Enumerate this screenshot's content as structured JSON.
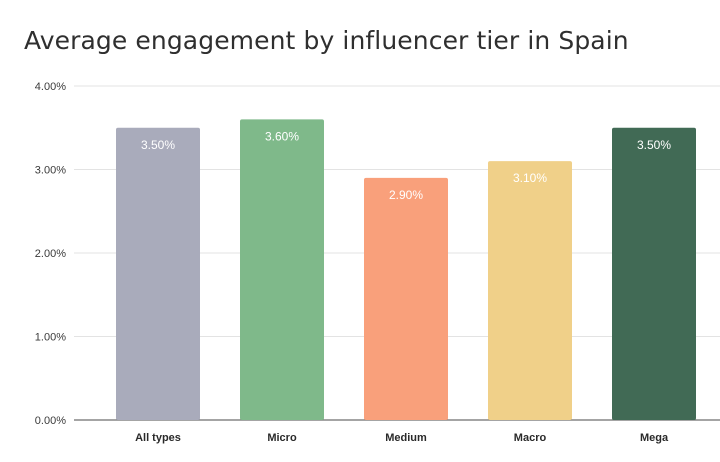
{
  "chart_data": {
    "type": "bar",
    "title": "Average engagement by influencer tier in Spain",
    "categories": [
      "All types",
      "Micro",
      "Medium",
      "Macro",
      "Mega"
    ],
    "values": [
      3.5,
      3.6,
      2.9,
      3.1,
      3.5
    ],
    "data_labels": [
      "3.50%",
      "3.60%",
      "2.90%",
      "3.10%",
      "3.50%"
    ],
    "colors": [
      "#a9abbb",
      "#7fb98a",
      "#f9a07b",
      "#f0d089",
      "#416a55"
    ],
    "ylim": [
      0,
      4
    ],
    "yticks": [
      0,
      1,
      2,
      3,
      4
    ],
    "ytick_labels": [
      "0.00%",
      "1.00%",
      "2.00%",
      "3.00%",
      "4.00%"
    ],
    "grid": true,
    "legend": "none"
  }
}
